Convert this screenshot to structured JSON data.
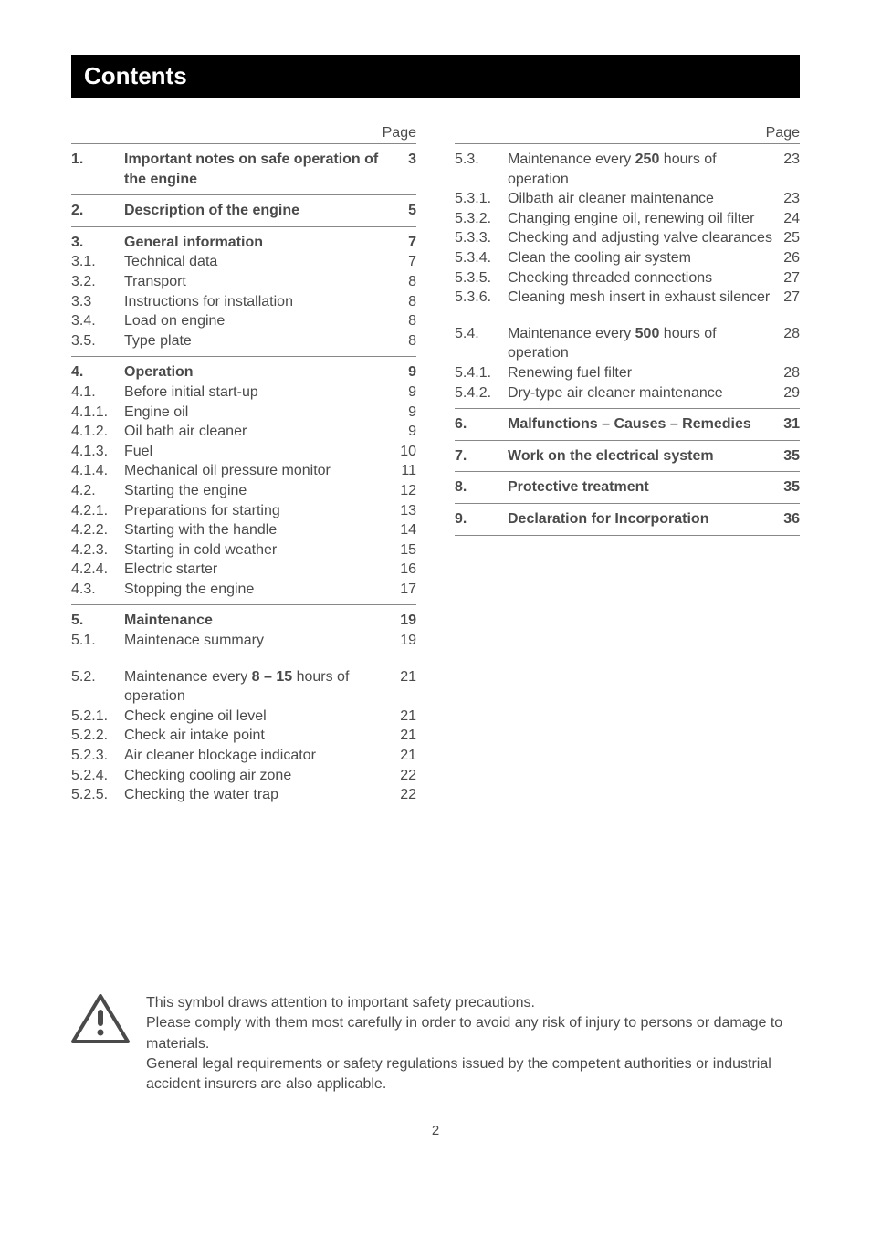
{
  "title": "Contents",
  "page_label": "Page",
  "left": [
    {
      "type": "group",
      "rows": [
        {
          "num": "1.",
          "txt": "Important notes on safe operation of the engine",
          "pg": "3",
          "bold": true
        }
      ]
    },
    {
      "type": "group",
      "rows": [
        {
          "num": "2.",
          "txt": "Description of the engine",
          "pg": "5",
          "bold": true
        }
      ]
    },
    {
      "type": "group",
      "rows": [
        {
          "num": "3.",
          "txt": "General information",
          "pg": "7",
          "bold": true
        },
        {
          "num": "3.1.",
          "txt": "Technical data",
          "pg": "7"
        },
        {
          "num": "3.2.",
          "txt": "Transport",
          "pg": "8"
        },
        {
          "num": "3.3",
          "txt": "Instructions for installation",
          "pg": "8"
        },
        {
          "num": "3.4.",
          "txt": "Load on engine",
          "pg": "8"
        },
        {
          "num": "3.5.",
          "txt": "Type plate",
          "pg": "8"
        }
      ]
    },
    {
      "type": "group",
      "rows": [
        {
          "num": "4.",
          "txt": "Operation",
          "pg": "9",
          "bold": true
        },
        {
          "num": "4.1.",
          "txt": "Before initial start-up",
          "pg": "9"
        },
        {
          "num": "4.1.1.",
          "txt": "Engine oil",
          "pg": "9"
        },
        {
          "num": "4.1.2.",
          "txt": "Oil bath air cleaner",
          "pg": "9"
        },
        {
          "num": "4.1.3.",
          "txt": "Fuel",
          "pg": "10"
        },
        {
          "num": "4.1.4.",
          "txt": "Mechanical oil pressure monitor",
          "pg": "11"
        },
        {
          "num": "4.2.",
          "txt": "Starting the engine",
          "pg": "12"
        },
        {
          "num": "4.2.1.",
          "txt": "Preparations for starting",
          "pg": "13"
        },
        {
          "num": "4.2.2.",
          "txt": "Starting with the handle",
          "pg": "14"
        },
        {
          "num": "4.2.3.",
          "txt": "Starting in cold weather",
          "pg": "15"
        },
        {
          "num": "4.2.4.",
          "txt": "Electric starter",
          "pg": "16"
        },
        {
          "num": "4.3.",
          "txt": "Stopping the engine",
          "pg": "17"
        }
      ]
    },
    {
      "type": "group",
      "rows": [
        {
          "num": "5.",
          "txt": "Maintenance",
          "pg": "19",
          "bold": true
        },
        {
          "num": "5.1.",
          "txt": "Maintenace summary",
          "pg": "19"
        }
      ]
    },
    {
      "type": "plain",
      "rows": [
        {
          "num": "5.2.",
          "txt_html": "Maintenance every <b>8 – 15</b> hours of operation",
          "pg": "21"
        },
        {
          "num": "5.2.1.",
          "txt": "Check engine oil level",
          "pg": "21"
        },
        {
          "num": "5.2.2.",
          "txt": "Check air intake point",
          "pg": "21"
        },
        {
          "num": "5.2.3.",
          "txt": "Air cleaner blockage indicator",
          "pg": "21"
        },
        {
          "num": "5.2.4.",
          "txt": "Checking cooling air zone",
          "pg": "22"
        },
        {
          "num": "5.2.5.",
          "txt": "Checking the water trap",
          "pg": "22"
        }
      ]
    }
  ],
  "right": [
    {
      "type": "group",
      "rows": [
        {
          "num": "5.3.",
          "txt_html": "Maintenance every <b>250</b> hours of operation",
          "pg": "23"
        },
        {
          "num": "5.3.1.",
          "txt": "Oilbath air cleaner maintenance",
          "pg": "23"
        },
        {
          "num": "5.3.2.",
          "txt": "Changing engine oil, renewing oil filter",
          "pg": "24"
        },
        {
          "num": "5.3.3.",
          "txt": "Checking and adjusting valve clearances",
          "pg": "25"
        },
        {
          "num": "5.3.4.",
          "txt": "Clean the cooling air system",
          "pg": "26"
        },
        {
          "num": "5.3.5.",
          "txt": "Checking threaded connections",
          "pg": "27"
        },
        {
          "num": "5.3.6.",
          "txt": "Cleaning mesh insert in exhaust silencer",
          "pg": "27"
        }
      ]
    },
    {
      "type": "plain",
      "rows": [
        {
          "num": "5.4.",
          "txt_html": "Maintenance every <b>500</b> hours of operation",
          "pg": "28"
        },
        {
          "num": "5.4.1.",
          "txt": "Renewing fuel filter",
          "pg": "28"
        },
        {
          "num": "5.4.2.",
          "txt": "Dry-type air cleaner maintenance",
          "pg": "29"
        }
      ]
    },
    {
      "type": "group",
      "rows": [
        {
          "num": "6.",
          "txt": "Malfunctions – Causes – Remedies",
          "pg": "31",
          "bold": true
        }
      ]
    },
    {
      "type": "group",
      "rows": [
        {
          "num": "7.",
          "txt": "Work on the electrical system",
          "pg": "35",
          "bold": true
        }
      ]
    },
    {
      "type": "group",
      "rows": [
        {
          "num": "8.",
          "txt": "Protective treatment",
          "pg": "35",
          "bold": true
        }
      ]
    },
    {
      "type": "group_closed",
      "rows": [
        {
          "num": "9.",
          "txt": "Declaration for Incorporation",
          "pg": "36",
          "bold": true
        }
      ]
    }
  ],
  "footnote": {
    "p1": "This symbol draws attention to important safety precautions.",
    "p2": "Please comply with them most carefully in order to avoid any risk of injury to persons or damage to materials.",
    "p3": "General legal requirements or safety regulations issued by the competent authorities or industrial accident insurers are also applicable."
  },
  "page_number": "2",
  "colors": {
    "text": "#4a4a4a",
    "rule": "#888888",
    "title_bg": "#000000",
    "title_fg": "#ffffff"
  }
}
